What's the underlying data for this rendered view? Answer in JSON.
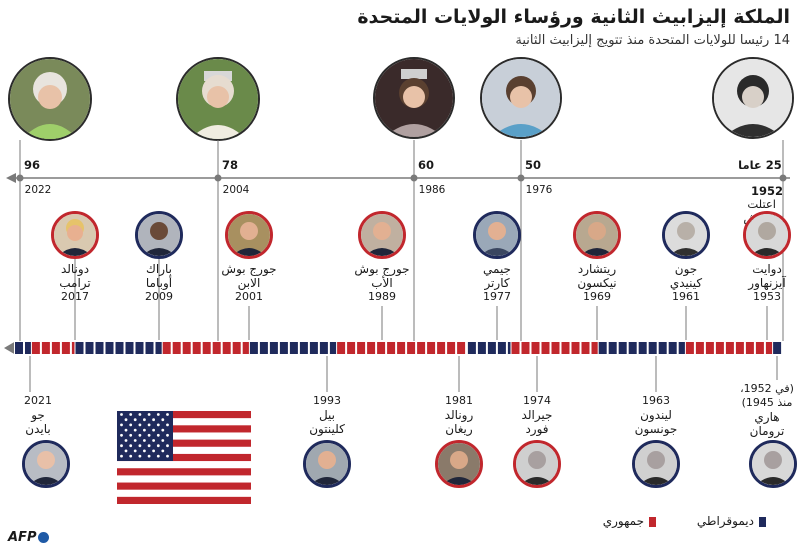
{
  "header": {
    "title": "الملكة إليزابيث الثانية ورؤساء الولايات المتحدة",
    "subtitle": "14 رئيسا للولايات المتحدة منذ تتويج إليزابيث الثانية"
  },
  "queen_timeline": [
    {
      "age": "96",
      "year": "2022"
    },
    {
      "age": "78",
      "year": "2004"
    },
    {
      "age": "60",
      "year": "1986"
    },
    {
      "age": "50",
      "year": "1976"
    },
    {
      "age": "25 عاما",
      "year": "1952",
      "note": "اعتلت العرش"
    }
  ],
  "presidents_top": [
    {
      "name": "دونالد ترامب",
      "line1": "دونالد",
      "line2": "ترامب",
      "year": "2017",
      "party": "republican"
    },
    {
      "name": "باراك أوباما",
      "line1": "باراك",
      "line2": "أوباما",
      "year": "2009",
      "party": "democrat"
    },
    {
      "name": "جورج بوش الابن",
      "line1": "جورج بوش",
      "line2": "الابن",
      "year": "2001",
      "party": "republican"
    },
    {
      "name": "جورج بوش الأب",
      "line1": "جورج بوش",
      "line2": "الأب",
      "year": "1989",
      "party": "republican"
    },
    {
      "name": "جيمي كارتر",
      "line1": "جيمي",
      "line2": "كارتر",
      "year": "1977",
      "party": "democrat"
    },
    {
      "name": "ريتشارد نيكسون",
      "line1": "ريتشارد",
      "line2": "نيكسون",
      "year": "1969",
      "party": "republican"
    },
    {
      "name": "جون كينيدي",
      "line1": "جون",
      "line2": "كينيدي",
      "year": "1961",
      "party": "democrat"
    },
    {
      "name": "دوايت آيزنهاور",
      "line1": "دوايت",
      "line2": "آيزنهاور",
      "year": "1953",
      "party": "republican"
    }
  ],
  "presidents_bottom": [
    {
      "name": "جو بايدن",
      "line1": "جو",
      "line2": "بايدن",
      "year": "2021",
      "party": "democrat"
    },
    {
      "name": "بيل كلينتون",
      "line1": "بيل",
      "line2": "كلينتون",
      "year": "1993",
      "party": "democrat"
    },
    {
      "name": "رونالد ريغان",
      "line1": "رونالد",
      "line2": "ريغان",
      "year": "1981",
      "party": "republican"
    },
    {
      "name": "جيرالد فورد",
      "line1": "جيرالد",
      "line2": "فورد",
      "year": "1974",
      "party": "republican"
    },
    {
      "name": "ليندون جونسون",
      "line1": "ليندون",
      "line2": "جونسون",
      "year": "1963",
      "party": "democrat"
    },
    {
      "name": "هاري ترومان",
      "line1": "هاري",
      "line2": "ترومان",
      "year": "(في 1952، منذ 1945)",
      "line0a": "(في 1952،",
      "line0b": "منذ 1945)",
      "party": "democrat"
    }
  ],
  "legend": {
    "democrat": "ديموقراطي",
    "republican": "جمهوري"
  },
  "colors": {
    "republican": "#c1272d",
    "democrat": "#1f2a5c",
    "axis": "#7a7a7a"
  },
  "credit": "AFP"
}
